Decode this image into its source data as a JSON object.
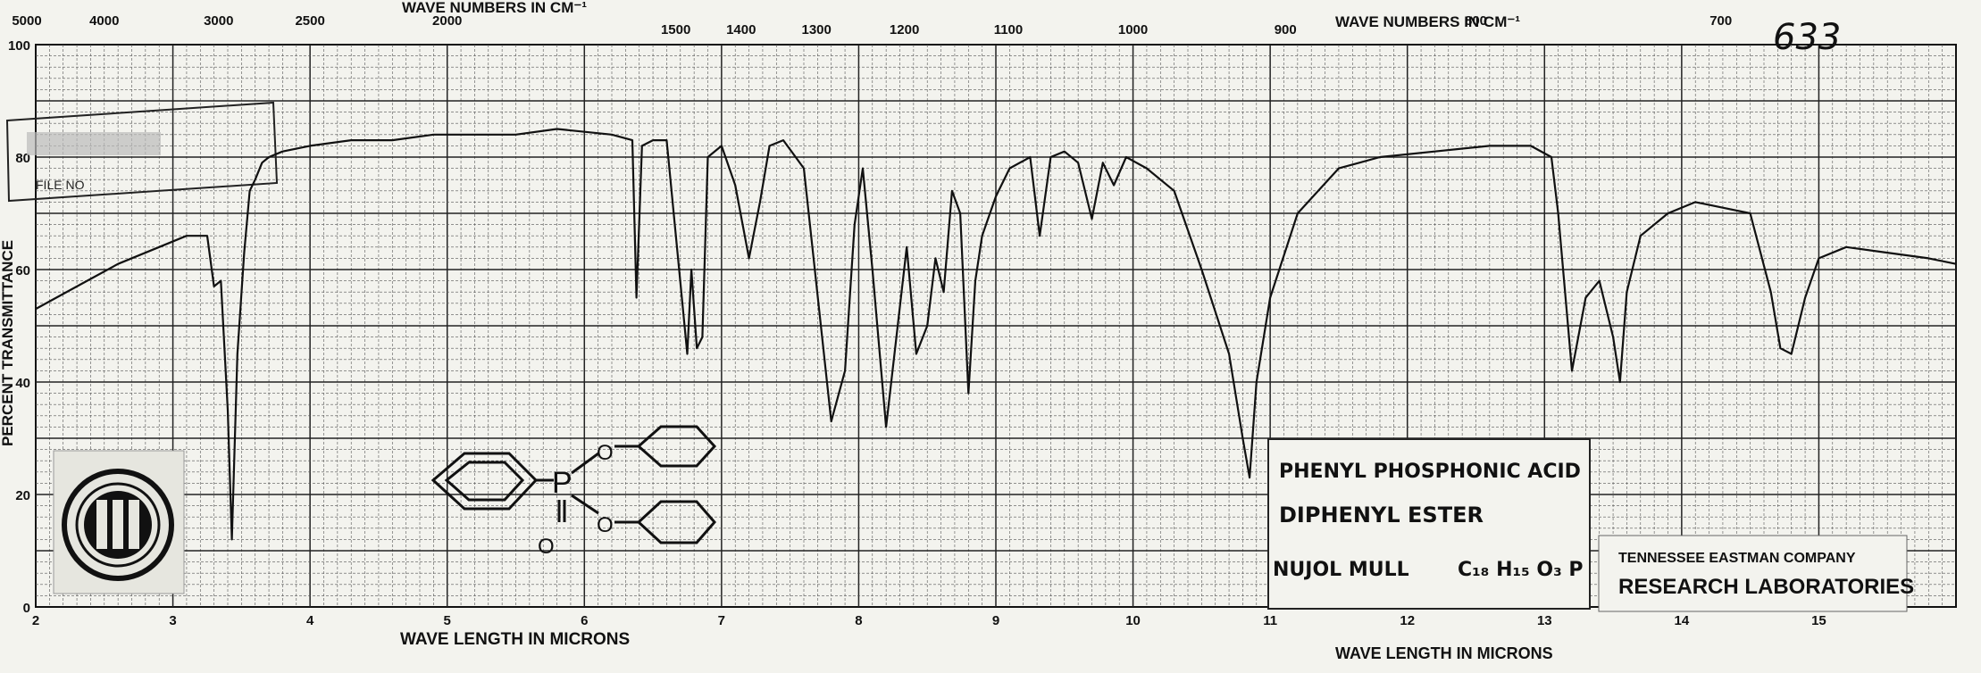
{
  "chart_data": {
    "type": "line",
    "title": "",
    "ylabel": "PERCENT TRANSMITTANCE",
    "xlabel": "WAVE LENGTH IN MICRONS",
    "top_axis_label": "WAVE NUMBERS IN CM⁻¹",
    "sheet_number": "633",
    "xlim": [
      2,
      16
    ],
    "ylim": [
      0,
      100
    ],
    "grid": true,
    "x_ticks": [
      2,
      3,
      4,
      5,
      6,
      7,
      8,
      9,
      10,
      11,
      12,
      13,
      14,
      15
    ],
    "y_ticks": [
      0,
      20,
      40,
      60,
      80,
      100
    ],
    "top_ticks": [
      5000,
      4000,
      3000,
      2500,
      2000,
      1500,
      1400,
      1300,
      1200,
      1100,
      1000,
      900,
      800,
      700
    ],
    "series": [
      {
        "x": [
          2.0,
          2.3,
          2.6,
          2.9,
          3.1,
          3.25,
          3.3,
          3.35,
          3.4,
          3.43,
          3.47,
          3.52,
          3.56,
          3.6,
          3.65,
          3.7,
          3.8,
          4.0,
          4.3,
          4.6,
          4.9,
          5.2,
          5.5,
          5.8,
          6.2,
          6.35,
          6.38,
          6.42,
          6.5,
          6.6,
          6.75,
          6.78,
          6.82,
          6.86,
          6.9,
          7.0,
          7.1,
          7.2,
          7.28,
          7.35,
          7.45,
          7.6,
          7.8,
          7.9,
          7.97,
          8.03,
          8.1,
          8.2,
          8.35,
          8.42,
          8.5,
          8.56,
          8.62,
          8.68,
          8.74,
          8.8,
          8.85,
          8.9,
          9.0,
          9.1,
          9.25,
          9.32,
          9.4,
          9.5,
          9.6,
          9.7,
          9.78,
          9.86,
          9.95,
          10.1,
          10.3,
          10.5,
          10.7,
          10.8,
          10.85,
          10.9,
          11.0,
          11.2,
          11.5,
          11.8,
          12.2,
          12.6,
          12.9,
          13.05,
          13.1,
          13.2,
          13.3,
          13.4,
          13.5,
          13.55,
          13.6,
          13.7,
          13.9,
          14.1,
          14.3,
          14.5,
          14.65,
          14.72,
          14.8,
          14.9,
          15.0,
          15.2,
          15.5,
          15.8,
          16.0
        ],
        "y": [
          53,
          57,
          61,
          64,
          66,
          66,
          57,
          58,
          35,
          12,
          45,
          63,
          74,
          76,
          79,
          80,
          81,
          82,
          83,
          83,
          84,
          84,
          84,
          85,
          84,
          83,
          55,
          82,
          83,
          83,
          45,
          60,
          46,
          48,
          80,
          82,
          75,
          62,
          72,
          82,
          83,
          78,
          33,
          42,
          68,
          78,
          60,
          32,
          64,
          45,
          50,
          62,
          56,
          74,
          70,
          38,
          58,
          66,
          73,
          78,
          80,
          66,
          80,
          81,
          79,
          69,
          79,
          75,
          80,
          78,
          74,
          60,
          45,
          30,
          23,
          40,
          55,
          70,
          78,
          80,
          81,
          82,
          82,
          80,
          70,
          42,
          55,
          58,
          48,
          40,
          56,
          66,
          70,
          72,
          71,
          70,
          56,
          46,
          45,
          55,
          62,
          64,
          63,
          62,
          61
        ]
      }
    ],
    "annotations": [
      {
        "text": "PHENYL PHOSPHONIC ACID"
      },
      {
        "text": "DIPHENYL ESTER"
      },
      {
        "text": "NUJOL MULL"
      },
      {
        "text": "C₁₈ H₁₅ O₃ P"
      },
      {
        "text": "TENNESSEE EASTMAN COMPANY"
      },
      {
        "text": "RESEARCH LABORATORIES"
      }
    ]
  },
  "stamp": {
    "text": "FILE NO"
  },
  "colors": {
    "paper": "#f3f3ee",
    "ink": "#111111",
    "grid": "#444444"
  }
}
